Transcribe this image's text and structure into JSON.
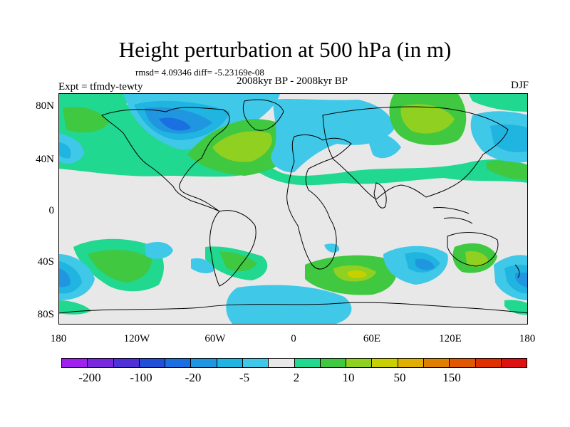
{
  "title": "Height perturbation at 500 hPa (in m)",
  "stats": "rmsd= 4.09346 diff= -5.23169e-08",
  "subtitle": "2008kyr BP - 2008kyr BP",
  "expt": "Expt = tfmdy-tewty",
  "season": "DJF",
  "lat_labels": [
    "80N",
    "40N",
    "0",
    "40S",
    "80S"
  ],
  "lon_labels": [
    "180",
    "120W",
    "60W",
    "0",
    "60E",
    "120E",
    "180"
  ],
  "colorbar": {
    "colors": [
      "#a020f0",
      "#7a28e0",
      "#5030d8",
      "#2050d8",
      "#1a70e0",
      "#2096e0",
      "#20b4e0",
      "#40c8e8",
      "#e8e8e8",
      "#20d890",
      "#40c840",
      "#90d020",
      "#c8d000",
      "#e0b000",
      "#e08000",
      "#e05800",
      "#e03000",
      "#e01010"
    ],
    "labels": [
      "-200",
      "-100",
      "-20",
      "-5",
      "2",
      "10",
      "50",
      "150"
    ]
  }
}
